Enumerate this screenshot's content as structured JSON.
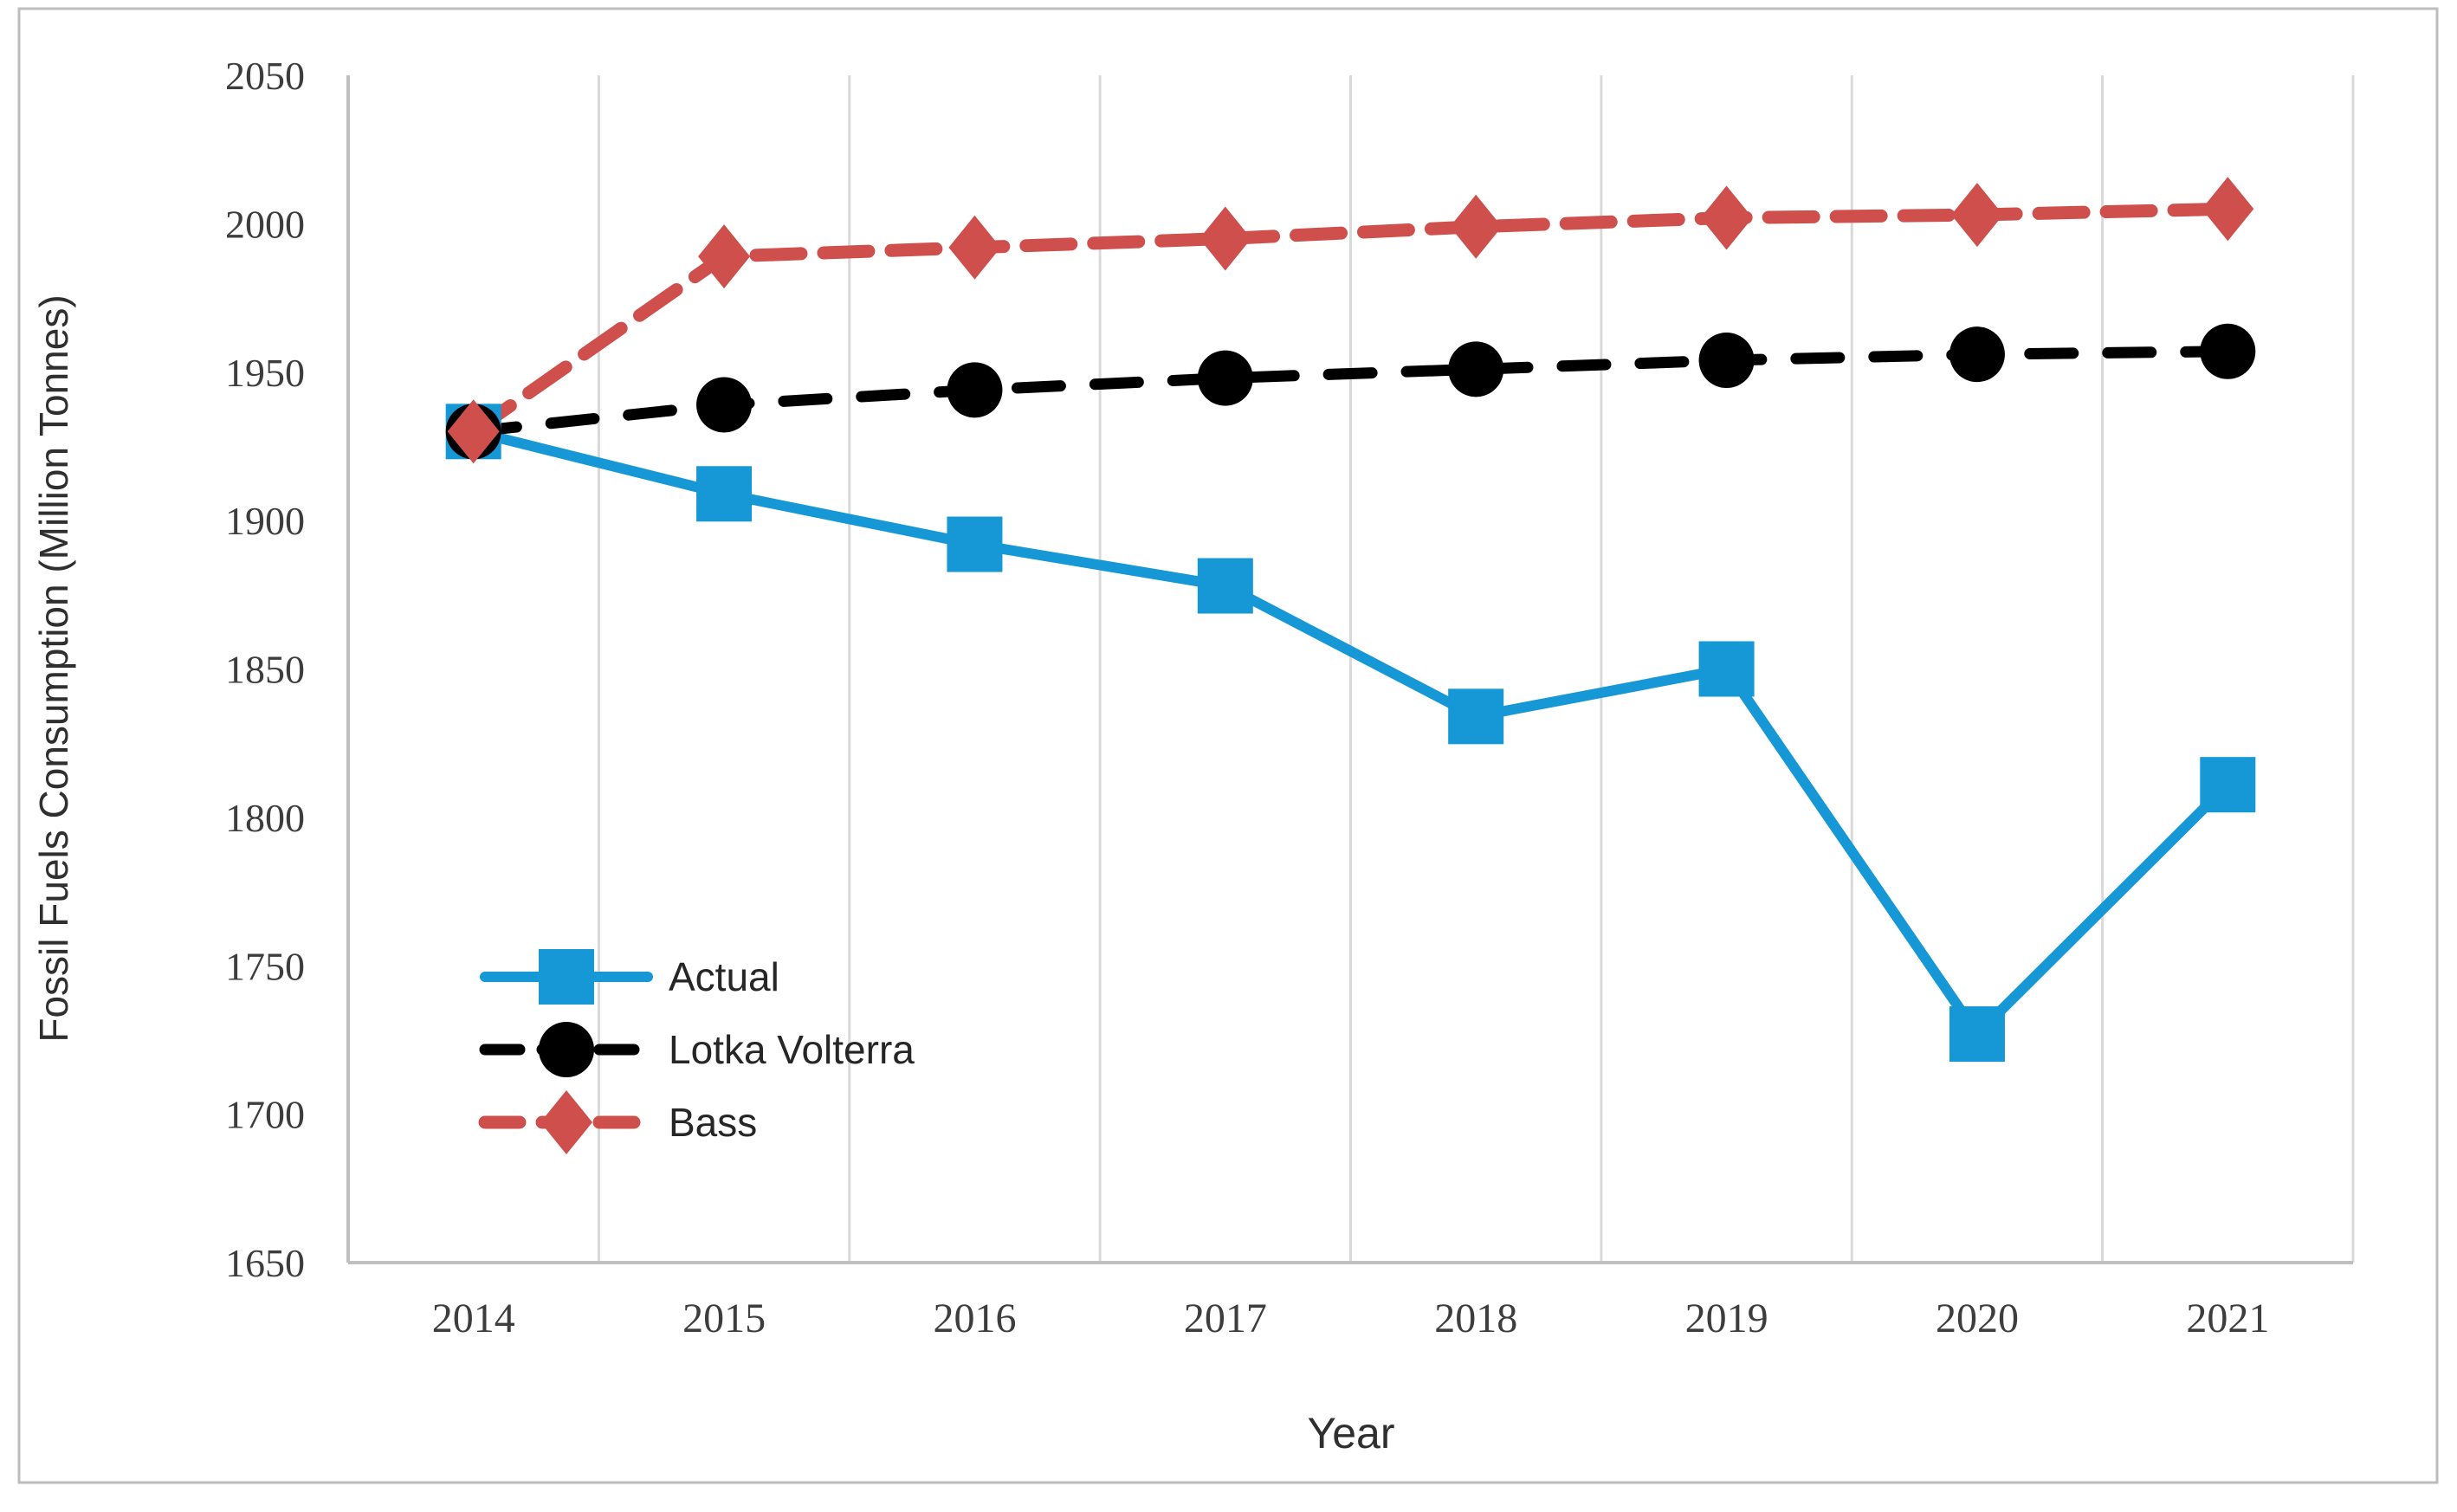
{
  "figure": {
    "border_color": "#bdbdbd",
    "background": "#ffffff",
    "gridline_color": "#d9d9d9",
    "axis_line_color": "#bfbfbf"
  },
  "chart_data": {
    "type": "line",
    "title": "",
    "xlabel": "Year",
    "ylabel": "Fossil Fuels Consumption (Million Tonnes)",
    "categories": [
      "2014",
      "2015",
      "2016",
      "2017",
      "2018",
      "2019",
      "2020",
      "2021"
    ],
    "y_axis": {
      "min": 1650,
      "max": 2050,
      "step": 50,
      "ticks": [
        2050,
        2000,
        1950,
        1900,
        1850,
        1800,
        1750,
        1700,
        1650
      ]
    },
    "grid": "vertical-only",
    "legend_position": "inside-left-lower",
    "series": [
      {
        "name": "Actual",
        "color": "#1697d6",
        "line": "solid",
        "marker": "square",
        "values": [
          1930,
          1909,
          1892,
          1878,
          1834,
          1850,
          1727,
          1811
        ]
      },
      {
        "name": "Lotka Volterra",
        "color": "#000000",
        "line": "dashed",
        "marker": "circle",
        "values": [
          1930,
          1939,
          1944,
          1948,
          1951,
          1954,
          1956,
          1957
        ]
      },
      {
        "name": "Bass",
        "color": "#ce4f4c",
        "line": "dashed",
        "marker": "diamond",
        "values": [
          1930,
          1989,
          1992,
          1995,
          1999,
          2002,
          2003,
          2005
        ]
      }
    ]
  }
}
